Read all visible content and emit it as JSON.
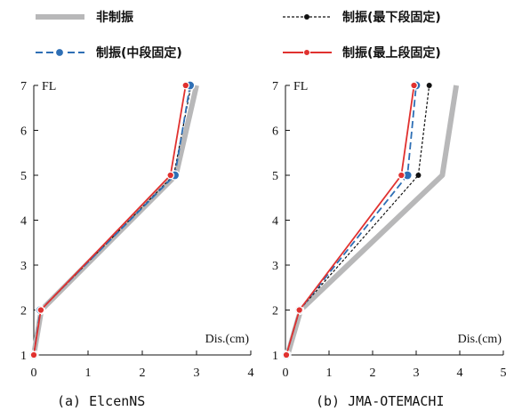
{
  "legend": [
    {
      "label": "非制振"
    },
    {
      "label": "制振(最下段固定)"
    },
    {
      "label": "制振(中段固定)"
    },
    {
      "label": "制振(最上段固定)"
    }
  ],
  "colors": {
    "uncontrolled": "#b8b8b9",
    "bottom_fixed": "#111111",
    "middle_fixed": "#2e6fb5",
    "top_fixed": "#e0312f"
  },
  "chart_data": [
    {
      "type": "line",
      "panel": "a",
      "caption": "(a) ElcenNS",
      "ylabel": "FL",
      "xlabel": "Dis.(cm)",
      "xlim": [
        0,
        4
      ],
      "ylim": [
        1,
        7
      ],
      "xticks": [
        "0",
        "1",
        "2",
        "3",
        "4"
      ],
      "yticks": [
        "1",
        "2",
        "3",
        "4",
        "5",
        "6",
        "7"
      ],
      "series": [
        {
          "name": "非制振",
          "x": [
            0.0,
            0.14,
            2.62,
            3.0
          ],
          "y": [
            1,
            2,
            5,
            7
          ]
        },
        {
          "name": "制振(最下段固定)",
          "x": [
            0.0,
            0.13,
            2.58,
            2.9
          ],
          "y": [
            1,
            2,
            5,
            7
          ]
        },
        {
          "name": "制振(中段固定)",
          "x": [
            0.0,
            0.12,
            2.6,
            2.88
          ],
          "y": [
            1,
            2,
            5,
            7
          ]
        },
        {
          "name": "制振(最上段固定)",
          "x": [
            0.0,
            0.13,
            2.52,
            2.8
          ],
          "y": [
            1,
            2,
            5,
            7
          ]
        }
      ]
    },
    {
      "type": "line",
      "panel": "b",
      "caption": "(b) JMA-OTEMACHI",
      "ylabel": "FL",
      "xlabel": "Dis.(cm)",
      "xlim": [
        0,
        5
      ],
      "ylim": [
        1,
        7
      ],
      "xticks": [
        "0",
        "1",
        "2",
        "3",
        "4",
        "5"
      ],
      "yticks": [
        "1",
        "2",
        "3",
        "4",
        "5",
        "6",
        "7"
      ],
      "series": [
        {
          "name": "非制振",
          "x": [
            0.05,
            0.35,
            3.6,
            3.92
          ],
          "y": [
            1,
            2,
            5,
            7
          ]
        },
        {
          "name": "制振(最下段固定)",
          "x": [
            0.02,
            0.32,
            3.05,
            3.3
          ],
          "y": [
            1,
            2,
            5,
            7
          ]
        },
        {
          "name": "制振(中段固定)",
          "x": [
            0.02,
            0.32,
            2.8,
            3.0
          ],
          "y": [
            1,
            2,
            5,
            7
          ]
        },
        {
          "name": "制振(最上段固定)",
          "x": [
            0.02,
            0.32,
            2.66,
            2.95
          ],
          "y": [
            1,
            2,
            5,
            7
          ]
        }
      ]
    }
  ]
}
